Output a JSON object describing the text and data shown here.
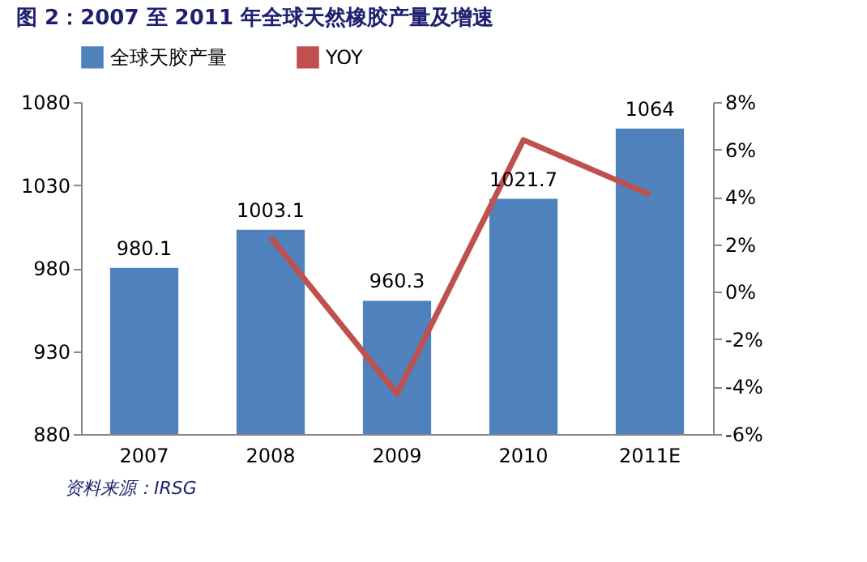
{
  "chart_data": {
    "type": "bar",
    "title": "图 2：2007 至 2011 年全球天然橡胶产量及增速",
    "categories": [
      "2007",
      "2008",
      "2009",
      "2010",
      "2011E"
    ],
    "series": [
      {
        "name": "全球天胶产量",
        "color": "#4f81bd",
        "values": [
          980.1,
          1003.1,
          960.3,
          1021.7,
          1064
        ],
        "value_labels": [
          "980.1",
          "1003.1",
          "960.3",
          "1021.7",
          "1064"
        ]
      },
      {
        "name": "YOY",
        "type": "line",
        "axis": "y2",
        "color": "#c0504d",
        "values": [
          null,
          2.3,
          -4.3,
          6.4,
          4.1
        ]
      }
    ],
    "ylim": [
      880,
      1080
    ],
    "yticks": [
      880,
      930,
      980,
      1030,
      1080
    ],
    "y2lim": [
      -6,
      8
    ],
    "y2ticks": [
      {
        "value": -6,
        "label": "-6%"
      },
      {
        "value": -4,
        "label": "-4%"
      },
      {
        "value": -2,
        "label": "-2%"
      },
      {
        "value": 0,
        "label": "0%"
      },
      {
        "value": 2,
        "label": "2%"
      },
      {
        "value": 4,
        "label": "4%"
      },
      {
        "value": 6,
        "label": "6%"
      },
      {
        "value": 8,
        "label": "8%"
      }
    ],
    "legend": "top",
    "grid": false,
    "line_style": "solid",
    "marker": "none",
    "annotations": [
      "资料来源：IRSG"
    ]
  }
}
